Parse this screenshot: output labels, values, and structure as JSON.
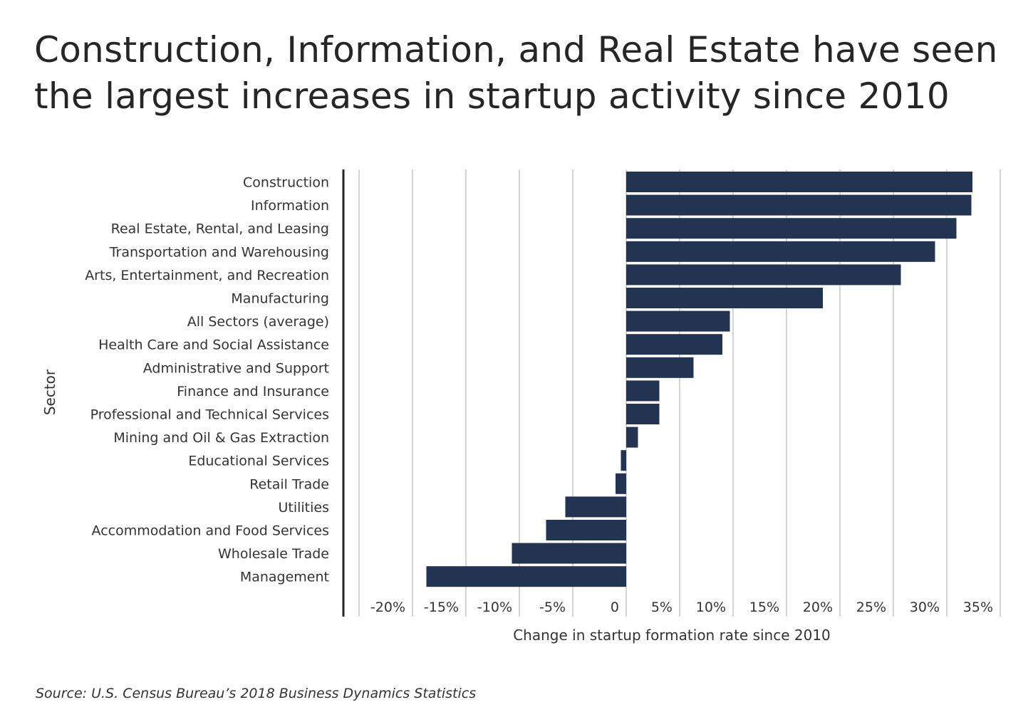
{
  "title": "Construction, Information, and Real Estate have seen the largest increases in startup activity since 2010",
  "source": "Source:  U.S. Census Bureau’s 2018 Business Dynamics Statistics",
  "colors": {
    "bar": "#233452",
    "grid": "#d4d4d4",
    "axis": "#262626",
    "text": "#333333"
  },
  "chart_data": {
    "type": "bar",
    "orientation": "horizontal",
    "title": "Construction, Information, and Real Estate have seen the largest increases in startup activity since 2010",
    "xlabel": "Change in startup formation rate since 2010",
    "ylabel": "Sector",
    "xlim": [
      -25,
      35
    ],
    "x_ticks": [
      -20,
      -15,
      -10,
      -5,
      0,
      5,
      10,
      15,
      20,
      25,
      30,
      35
    ],
    "x_tick_labels": [
      "-20%",
      "-15%",
      "-10%",
      "-5%",
      "0",
      "5%",
      "10%",
      "15%",
      "20%",
      "25%",
      "30%",
      "35%"
    ],
    "gridlines": [
      -25,
      -20,
      -15,
      -10,
      -5,
      0,
      5,
      10,
      15,
      20,
      25,
      30,
      35
    ],
    "grid": true,
    "legend": "none",
    "categories": [
      "Construction",
      "Information",
      "Real Estate, Rental, and Leasing",
      "Transportation and Warehousing",
      "Arts, Entertainment, and Recreation",
      "Manufacturing",
      "All Sectors (average)",
      "Health Care and Social Assistance",
      "Administrative and Support",
      "Finance and Insurance",
      "Professional and Technical Services",
      "Mining and Oil & Gas Extraction",
      "Educational Services",
      "Retail Trade",
      "Utilities",
      "Accommodation and Food Services",
      "Wholesale Trade",
      "Management"
    ],
    "values": [
      32.4,
      32.3,
      30.9,
      28.9,
      25.7,
      18.4,
      9.7,
      9.0,
      6.3,
      3.1,
      3.1,
      1.1,
      -0.5,
      -1.0,
      -5.7,
      -7.5,
      -10.7,
      -18.7
    ],
    "unit": "%"
  }
}
